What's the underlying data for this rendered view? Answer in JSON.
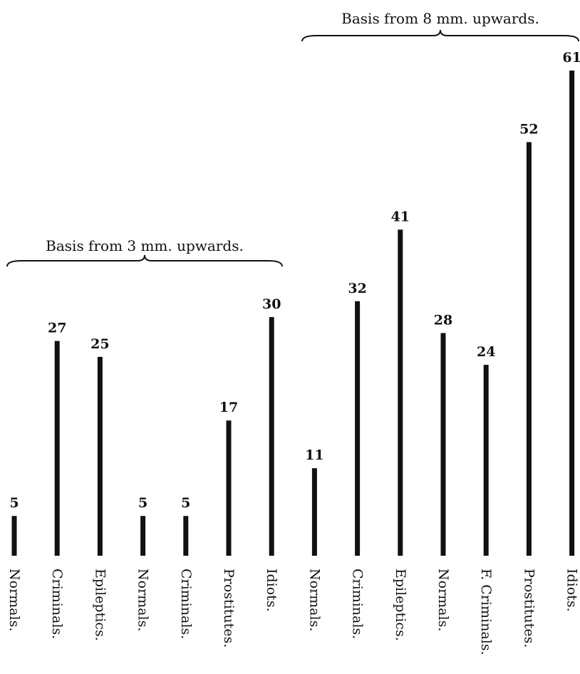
{
  "chart_data": {
    "type": "bar",
    "orientation": "vertical",
    "grid": false,
    "legend": "none",
    "groups": [
      {
        "label": "Basis from 3 mm. upwards.",
        "first": 0,
        "last": 6
      },
      {
        "label": "Basis from 8 mm. upwards.",
        "first": 7,
        "last": 13
      }
    ],
    "categories": [
      "Normals.",
      "Criminals.",
      "Epileptics.",
      "Normals.",
      "Criminals.",
      "Prostitutes.",
      "Idiots.",
      "Normals.",
      "Criminals.",
      "Epileptics.",
      "Normals.",
      "F. Criminals.",
      "Prostitutes.",
      "Idiots."
    ],
    "values": [
      5,
      27,
      25,
      5,
      5,
      17,
      30,
      11,
      32,
      41,
      28,
      24,
      52,
      61
    ],
    "ylim": [
      0,
      61
    ],
    "bar_color": "#111111"
  }
}
